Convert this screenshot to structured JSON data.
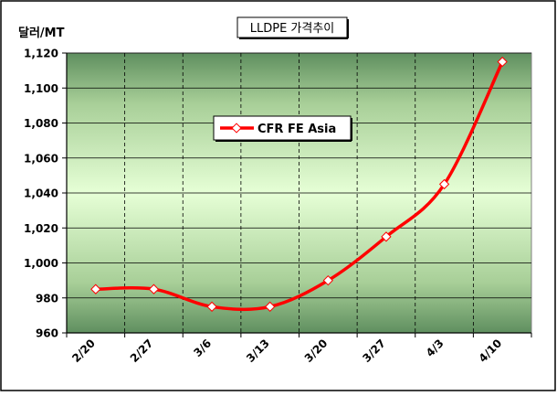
{
  "chart_data": {
    "type": "line",
    "title": "LLDPE 가격추이",
    "ylabel": "달러/MT",
    "xlabel": "",
    "categories": [
      "2/20",
      "2/27",
      "3/6",
      "3/13",
      "3/20",
      "3/27",
      "4/3",
      "4/10"
    ],
    "series": [
      {
        "name": "CFR FE Asia",
        "values": [
          985,
          985,
          975,
          975,
          990,
          1015,
          1045,
          1115
        ]
      }
    ],
    "ylim": [
      960,
      1120
    ],
    "yticks": [
      960,
      980,
      "1,000",
      "1,020",
      "1,040",
      "1,060",
      "1,080",
      "1,100",
      "1,120"
    ],
    "ytick_values": [
      960,
      980,
      1000,
      1020,
      1040,
      1060,
      1080,
      1100,
      1120
    ],
    "grid": true,
    "legend_position": "top-center",
    "colors": {
      "line": "#ff0000",
      "marker_fill": "#ffffff",
      "plot_edge": "#5a8a5a",
      "plot_center": "#e8ffd8",
      "grid": "#000000"
    }
  }
}
